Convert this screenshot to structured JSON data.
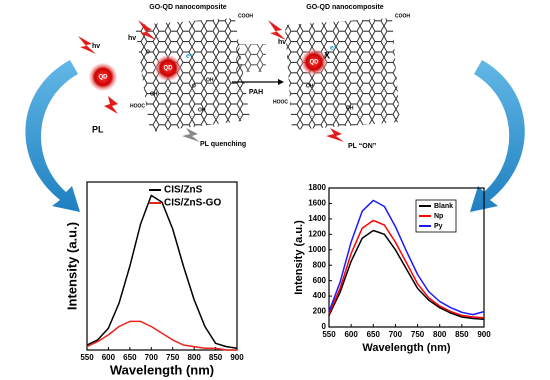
{
  "diagram": {
    "labels": [
      "GO-QD nanocomposite",
      "GO-QD nanocomposite",
      "hv",
      "hv",
      "hv",
      "QD",
      "QD",
      "QD",
      "PL",
      "PAH",
      "PL quenching",
      "PL “ON”",
      "COOH",
      "COOH",
      "HOOC",
      "HOOC",
      "e⁻",
      "e⁻",
      "X",
      "OH",
      "OH",
      "OH",
      "OH",
      "OH",
      "O",
      "O"
    ]
  },
  "chart_data": [
    {
      "type": "line",
      "xlabel": "Wavelength (nm)",
      "ylabel": "Intensity (a.u.)",
      "x": [
        550,
        575,
        600,
        625,
        650,
        675,
        700,
        725,
        750,
        775,
        800,
        825,
        850,
        875,
        900
      ],
      "xlim": [
        550,
        900
      ],
      "xticks": [
        550,
        600,
        650,
        700,
        750,
        800,
        850,
        900
      ],
      "ylim": [
        0,
        100
      ],
      "legend": "upper right",
      "series": [
        {
          "name": "CIS/ZnS",
          "color": "#000000",
          "values": [
            3,
            6,
            13,
            28,
            50,
            75,
            92,
            88,
            72,
            50,
            30,
            14,
            4,
            2,
            1
          ]
        },
        {
          "name": "CIS/ZnS-GO",
          "color": "#e8231c",
          "values": [
            2,
            5,
            9,
            14,
            17,
            17,
            14,
            10,
            6,
            3,
            2,
            1,
            1,
            0,
            0
          ]
        }
      ]
    },
    {
      "type": "line",
      "xlabel": "Wavelength (nm)",
      "ylabel": "Intensity (a.u.)",
      "x": [
        550,
        575,
        600,
        625,
        650,
        675,
        700,
        725,
        750,
        775,
        800,
        825,
        850,
        875,
        900
      ],
      "xlim": [
        550,
        900
      ],
      "xticks": [
        550,
        600,
        650,
        700,
        750,
        800,
        850,
        900
      ],
      "ylim": [
        0,
        1800
      ],
      "yticks": [
        0,
        200,
        400,
        600,
        800,
        1000,
        1200,
        1400,
        1600,
        1800
      ],
      "legend": "upper right",
      "series": [
        {
          "name": "Blank",
          "color": "#000000",
          "values": [
            150,
            450,
            850,
            1150,
            1250,
            1200,
            1000,
            750,
            500,
            350,
            250,
            180,
            130,
            110,
            100
          ]
        },
        {
          "name": "Np",
          "color": "#ff0000",
          "values": [
            170,
            500,
            950,
            1280,
            1380,
            1320,
            1100,
            830,
            560,
            380,
            270,
            200,
            150,
            130,
            120
          ]
        },
        {
          "name": "Py",
          "color": "#1a1aff",
          "values": [
            200,
            580,
            1100,
            1500,
            1640,
            1560,
            1300,
            980,
            680,
            460,
            330,
            250,
            190,
            160,
            200
          ]
        }
      ]
    }
  ]
}
